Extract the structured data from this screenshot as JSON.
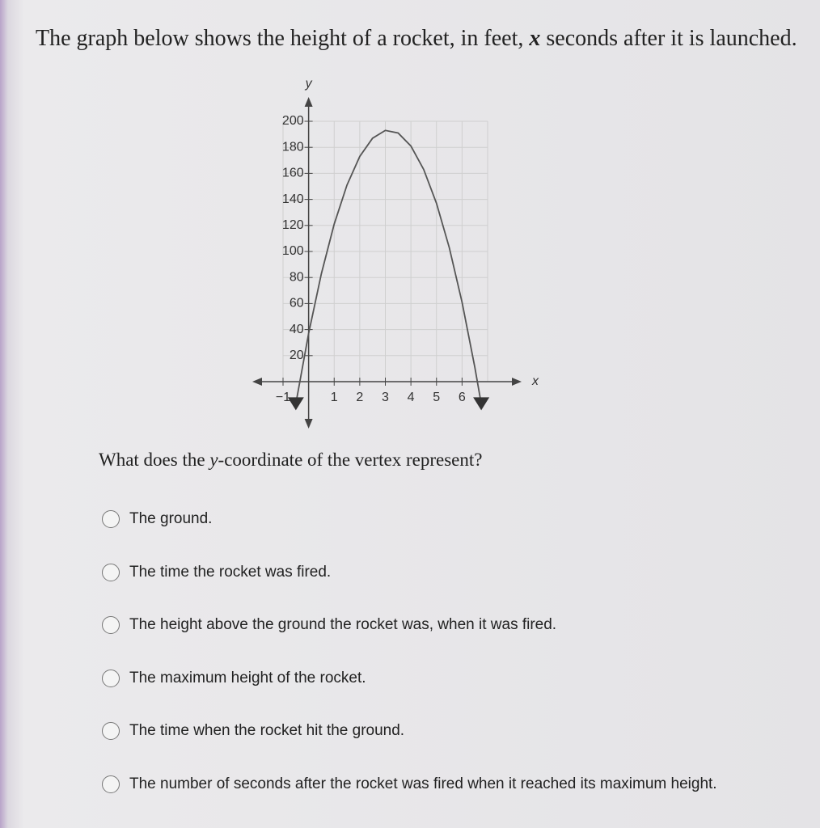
{
  "header": {
    "title_parts": [
      "The graph below shows the height of a rocket, in feet, ",
      "x",
      " seconds after it is launched."
    ]
  },
  "chart_data": {
    "type": "line",
    "x_label": "x",
    "y_label": "y",
    "x": [
      -0.5,
      0,
      0.5,
      1,
      1.5,
      2,
      2.5,
      3,
      3.5,
      4,
      4.5,
      5,
      5.5,
      6,
      6.5,
      6.75
    ],
    "series": [
      {
        "color": "#555555",
        "values": [
          -17,
          37,
          83,
          121,
          151,
          173,
          187,
          193,
          191,
          181,
          163,
          137,
          103,
          61,
          11,
          -17
        ]
      }
    ],
    "xlim": [
      -1,
      7
    ],
    "ylim": [
      0,
      200
    ],
    "xticks": [
      {
        "value": -1,
        "label": "−1"
      },
      1,
      2,
      3,
      4,
      5,
      6
    ],
    "yticks": [
      20,
      40,
      60,
      80,
      100,
      120,
      140,
      160,
      180,
      200
    ],
    "grid": true
  },
  "question": {
    "parts": [
      "What does the ",
      "y",
      "-coordinate of the vertex represent?"
    ]
  },
  "options": [
    "The ground.",
    "The time the rocket was fired.",
    "The height above the ground the rocket was, when it was fired.",
    "The maximum height of the rocket.",
    "The time when the rocket hit the ground.",
    "The number of seconds after the rocket was fired when it reached its maximum height."
  ]
}
